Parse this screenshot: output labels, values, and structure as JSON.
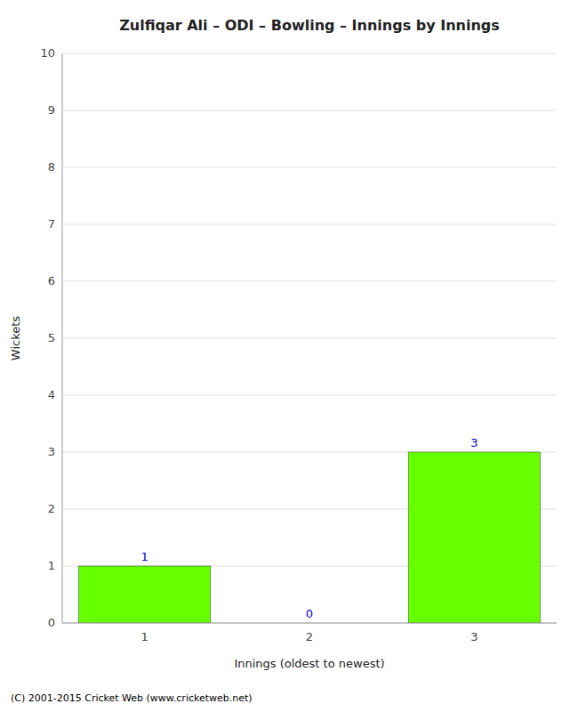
{
  "chart_data": {
    "type": "bar",
    "title": "Zulfiqar Ali – ODI – Bowling – Innings by Innings",
    "xlabel": "Innings (oldest to newest)",
    "ylabel": "Wickets",
    "categories": [
      "1",
      "2",
      "3"
    ],
    "values": [
      1,
      0,
      3
    ],
    "color": "#66ff00",
    "ylim": [
      0,
      10
    ],
    "yticks": [
      0,
      1,
      2,
      3,
      4,
      5,
      6,
      7,
      8,
      9,
      10
    ],
    "grid": true,
    "data_labels": true,
    "annotations": [
      "(C) 2001-2015 Cricket Web (www.cricketweb.net)"
    ]
  }
}
